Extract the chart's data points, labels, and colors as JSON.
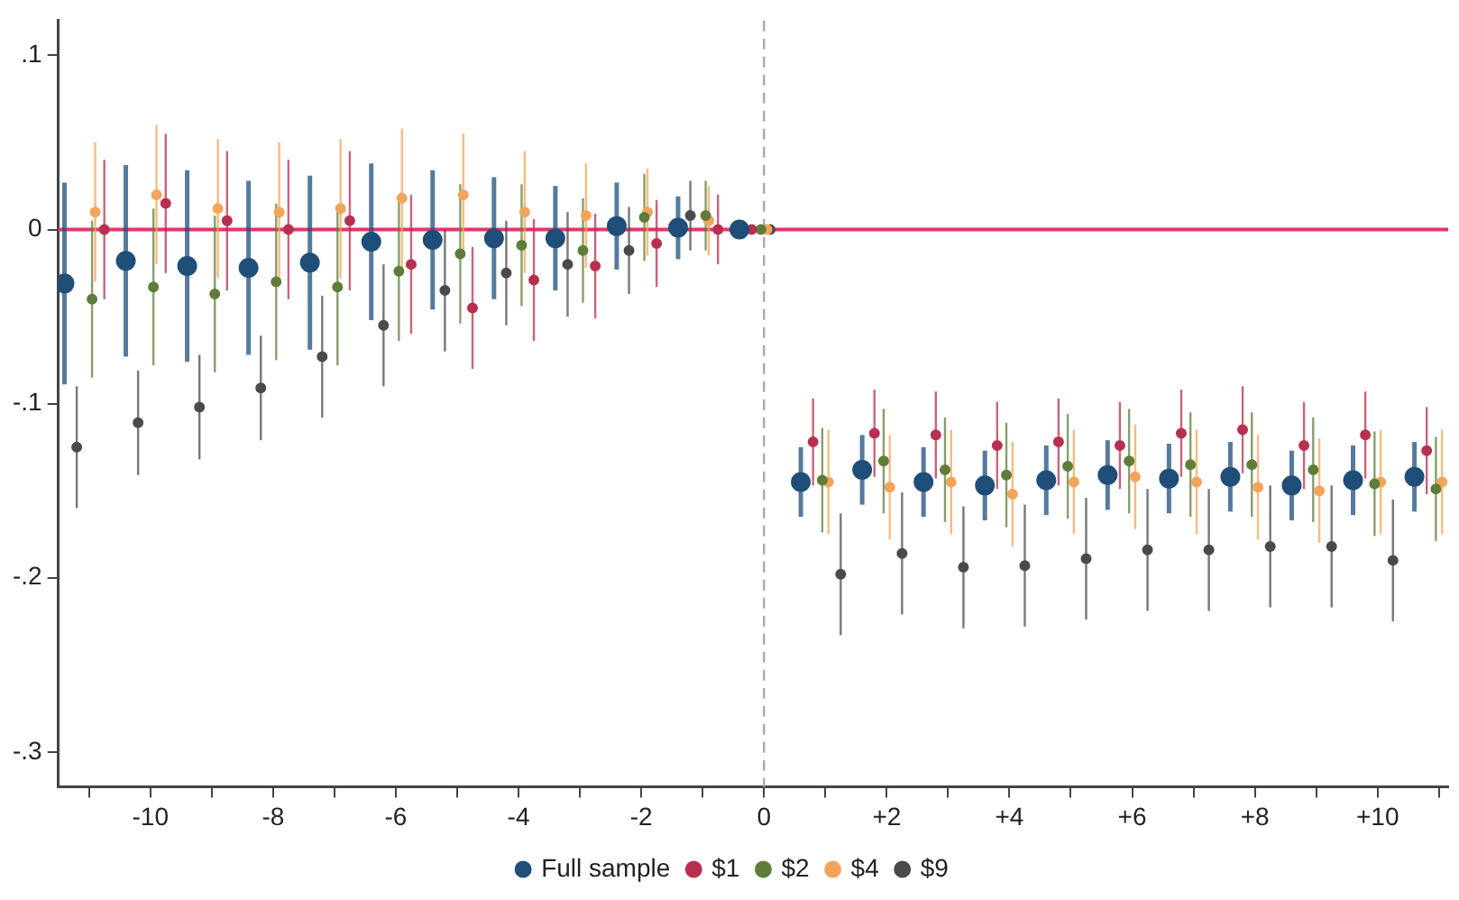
{
  "chart_data": {
    "type": "scatter",
    "xlim": [
      -11.5,
      11.15
    ],
    "ylim": [
      -0.32,
      0.12
    ],
    "xticks": [
      {
        "value": -11,
        "label": null
      },
      {
        "value": -10,
        "label": "-10"
      },
      {
        "value": -9,
        "label": null
      },
      {
        "value": -8,
        "label": "-8"
      },
      {
        "value": -7,
        "label": null
      },
      {
        "value": -6,
        "label": "-6"
      },
      {
        "value": -5,
        "label": null
      },
      {
        "value": -4,
        "label": "-4"
      },
      {
        "value": -3,
        "label": null
      },
      {
        "value": -2,
        "label": "-2"
      },
      {
        "value": -1,
        "label": null
      },
      0,
      {
        "value": 1,
        "label": null
      },
      {
        "value": 2,
        "label": "+2"
      },
      {
        "value": 3,
        "label": null
      },
      {
        "value": 4,
        "label": "+4"
      },
      {
        "value": 5,
        "label": null
      },
      {
        "value": 6,
        "label": "+6"
      },
      {
        "value": 7,
        "label": null
      },
      {
        "value": 8,
        "label": "+8"
      },
      {
        "value": 9,
        "label": null
      },
      {
        "value": 10,
        "label": "+10"
      },
      {
        "value": 11,
        "label": null
      }
    ],
    "yticks": [
      {
        "value": 0.1,
        "label": ".1"
      },
      0,
      {
        "value": -0.1,
        "label": "-.1"
      },
      {
        "value": -0.2,
        "label": "-.2"
      },
      {
        "value": -0.3,
        "label": "-.3"
      }
    ],
    "legend": "bottom",
    "marker": "circle",
    "ref_lines": [
      {
        "axis": "y",
        "value": 0,
        "label": null,
        "color": "#e8326e",
        "line_style": "solid"
      },
      {
        "axis": "x",
        "value": 0,
        "label": null,
        "color": "#aaaaaa",
        "line_style": "dashed"
      }
    ],
    "series": [
      {
        "name": "Full sample",
        "color": "#1f4e79",
        "x": [
          -11.4,
          -10.4,
          -9.4,
          -8.4,
          -7.4,
          -6.4,
          -5.4,
          -4.4,
          -3.4,
          -2.4,
          -1.4,
          -0.4,
          0.6,
          1.6,
          2.6,
          3.6,
          4.6,
          5.6,
          6.6,
          7.6,
          8.6,
          9.6,
          10.6
        ],
        "values": [
          -0.031,
          -0.018,
          -0.021,
          -0.022,
          -0.019,
          -0.007,
          -0.006,
          -0.005,
          -0.005,
          0.002,
          0.001,
          0,
          -0.145,
          -0.138,
          -0.145,
          -0.147,
          -0.144,
          -0.141,
          -0.143,
          -0.142,
          -0.147,
          -0.144,
          -0.142
        ],
        "errors": [
          0.058,
          0.055,
          0.055,
          0.05,
          0.05,
          0.045,
          0.04,
          0.035,
          0.03,
          0.025,
          0.018,
          null,
          0.02,
          0.02,
          0.02,
          0.02,
          0.02,
          0.02,
          0.02,
          0.02,
          0.02,
          0.02,
          0.02
        ]
      },
      {
        "name": "$1",
        "color": "#b8304f",
        "x": [
          -10.75,
          -9.75,
          -8.75,
          -7.75,
          -6.75,
          -5.75,
          -4.75,
          -3.75,
          -2.75,
          -1.75,
          -0.75,
          -0.2,
          0.8,
          1.8,
          2.8,
          3.8,
          4.8,
          5.8,
          6.8,
          7.8,
          8.8,
          9.8,
          10.8
        ],
        "values": [
          0,
          0.015,
          0.005,
          0,
          0.005,
          -0.02,
          -0.045,
          -0.029,
          -0.021,
          -0.008,
          0,
          0,
          -0.122,
          -0.117,
          -0.118,
          -0.124,
          -0.122,
          -0.124,
          -0.117,
          -0.115,
          -0.124,
          -0.118,
          -0.127
        ],
        "errors": [
          0.04,
          0.04,
          0.04,
          0.04,
          0.04,
          0.04,
          0.035,
          0.035,
          0.03,
          0.025,
          0.02,
          null,
          0.025,
          0.025,
          0.025,
          0.025,
          0.025,
          0.025,
          0.025,
          0.025,
          0.025,
          0.025,
          0.025
        ]
      },
      {
        "name": "$2",
        "color": "#5e7d3a",
        "x": [
          -10.95,
          -9.95,
          -8.95,
          -7.95,
          -6.95,
          -5.95,
          -4.95,
          -3.95,
          -2.95,
          -1.95,
          -0.95,
          -0.05,
          0.95,
          1.95,
          2.95,
          3.95,
          4.95,
          5.95,
          6.95,
          7.95,
          8.95,
          9.95,
          10.95
        ],
        "values": [
          -0.04,
          -0.033,
          -0.037,
          -0.03,
          -0.033,
          -0.024,
          -0.014,
          -0.009,
          -0.012,
          0.007,
          0.008,
          0,
          -0.144,
          -0.133,
          -0.138,
          -0.141,
          -0.136,
          -0.133,
          -0.135,
          -0.135,
          -0.138,
          -0.146,
          -0.149
        ],
        "errors": [
          0.045,
          0.045,
          0.045,
          0.045,
          0.045,
          0.04,
          0.04,
          0.035,
          0.03,
          0.025,
          0.02,
          null,
          0.03,
          0.03,
          0.03,
          0.03,
          0.03,
          0.03,
          0.03,
          0.03,
          0.03,
          0.03,
          0.03
        ]
      },
      {
        "name": "$4",
        "color": "#f2a55a",
        "x": [
          -10.9,
          -9.9,
          -8.9,
          -7.9,
          -6.9,
          -5.9,
          -4.9,
          -3.9,
          -2.9,
          -1.9,
          -0.9,
          0.05,
          1.05,
          2.05,
          3.05,
          4.05,
          5.05,
          6.05,
          7.05,
          8.05,
          9.05,
          10.05,
          11.05
        ],
        "values": [
          0.01,
          0.02,
          0.012,
          0.01,
          0.012,
          0.018,
          0.02,
          0.01,
          0.008,
          0.01,
          0.005,
          0,
          -0.145,
          -0.148,
          -0.145,
          -0.152,
          -0.145,
          -0.142,
          -0.145,
          -0.148,
          -0.15,
          -0.145,
          -0.145
        ],
        "errors": [
          0.04,
          0.04,
          0.04,
          0.04,
          0.04,
          0.04,
          0.035,
          0.035,
          0.03,
          0.025,
          0.02,
          null,
          0.03,
          0.03,
          0.03,
          0.03,
          0.03,
          0.03,
          0.03,
          0.03,
          0.03,
          0.03,
          0.03
        ]
      },
      {
        "name": "$9",
        "color": "#4a4a4a",
        "x": [
          -11.2,
          -10.2,
          -9.2,
          -8.2,
          -7.2,
          -6.2,
          -5.2,
          -4.2,
          -3.2,
          -2.2,
          -1.2,
          0.1,
          1.25,
          2.25,
          3.25,
          4.25,
          5.25,
          6.25,
          7.25,
          8.25,
          9.25,
          10.25
        ],
        "values": [
          -0.125,
          -0.111,
          -0.102,
          -0.091,
          -0.073,
          -0.055,
          -0.035,
          -0.025,
          -0.02,
          -0.012,
          0.008,
          0,
          -0.198,
          -0.186,
          -0.194,
          -0.193,
          -0.189,
          -0.184,
          -0.184,
          -0.182,
          -0.182,
          -0.19
        ],
        "errors": [
          0.035,
          0.03,
          0.03,
          0.03,
          0.035,
          0.035,
          0.035,
          0.03,
          0.03,
          0.025,
          0.02,
          null,
          0.035,
          0.035,
          0.035,
          0.035,
          0.035,
          0.035,
          0.035,
          0.035,
          0.035,
          0.035
        ]
      }
    ]
  }
}
